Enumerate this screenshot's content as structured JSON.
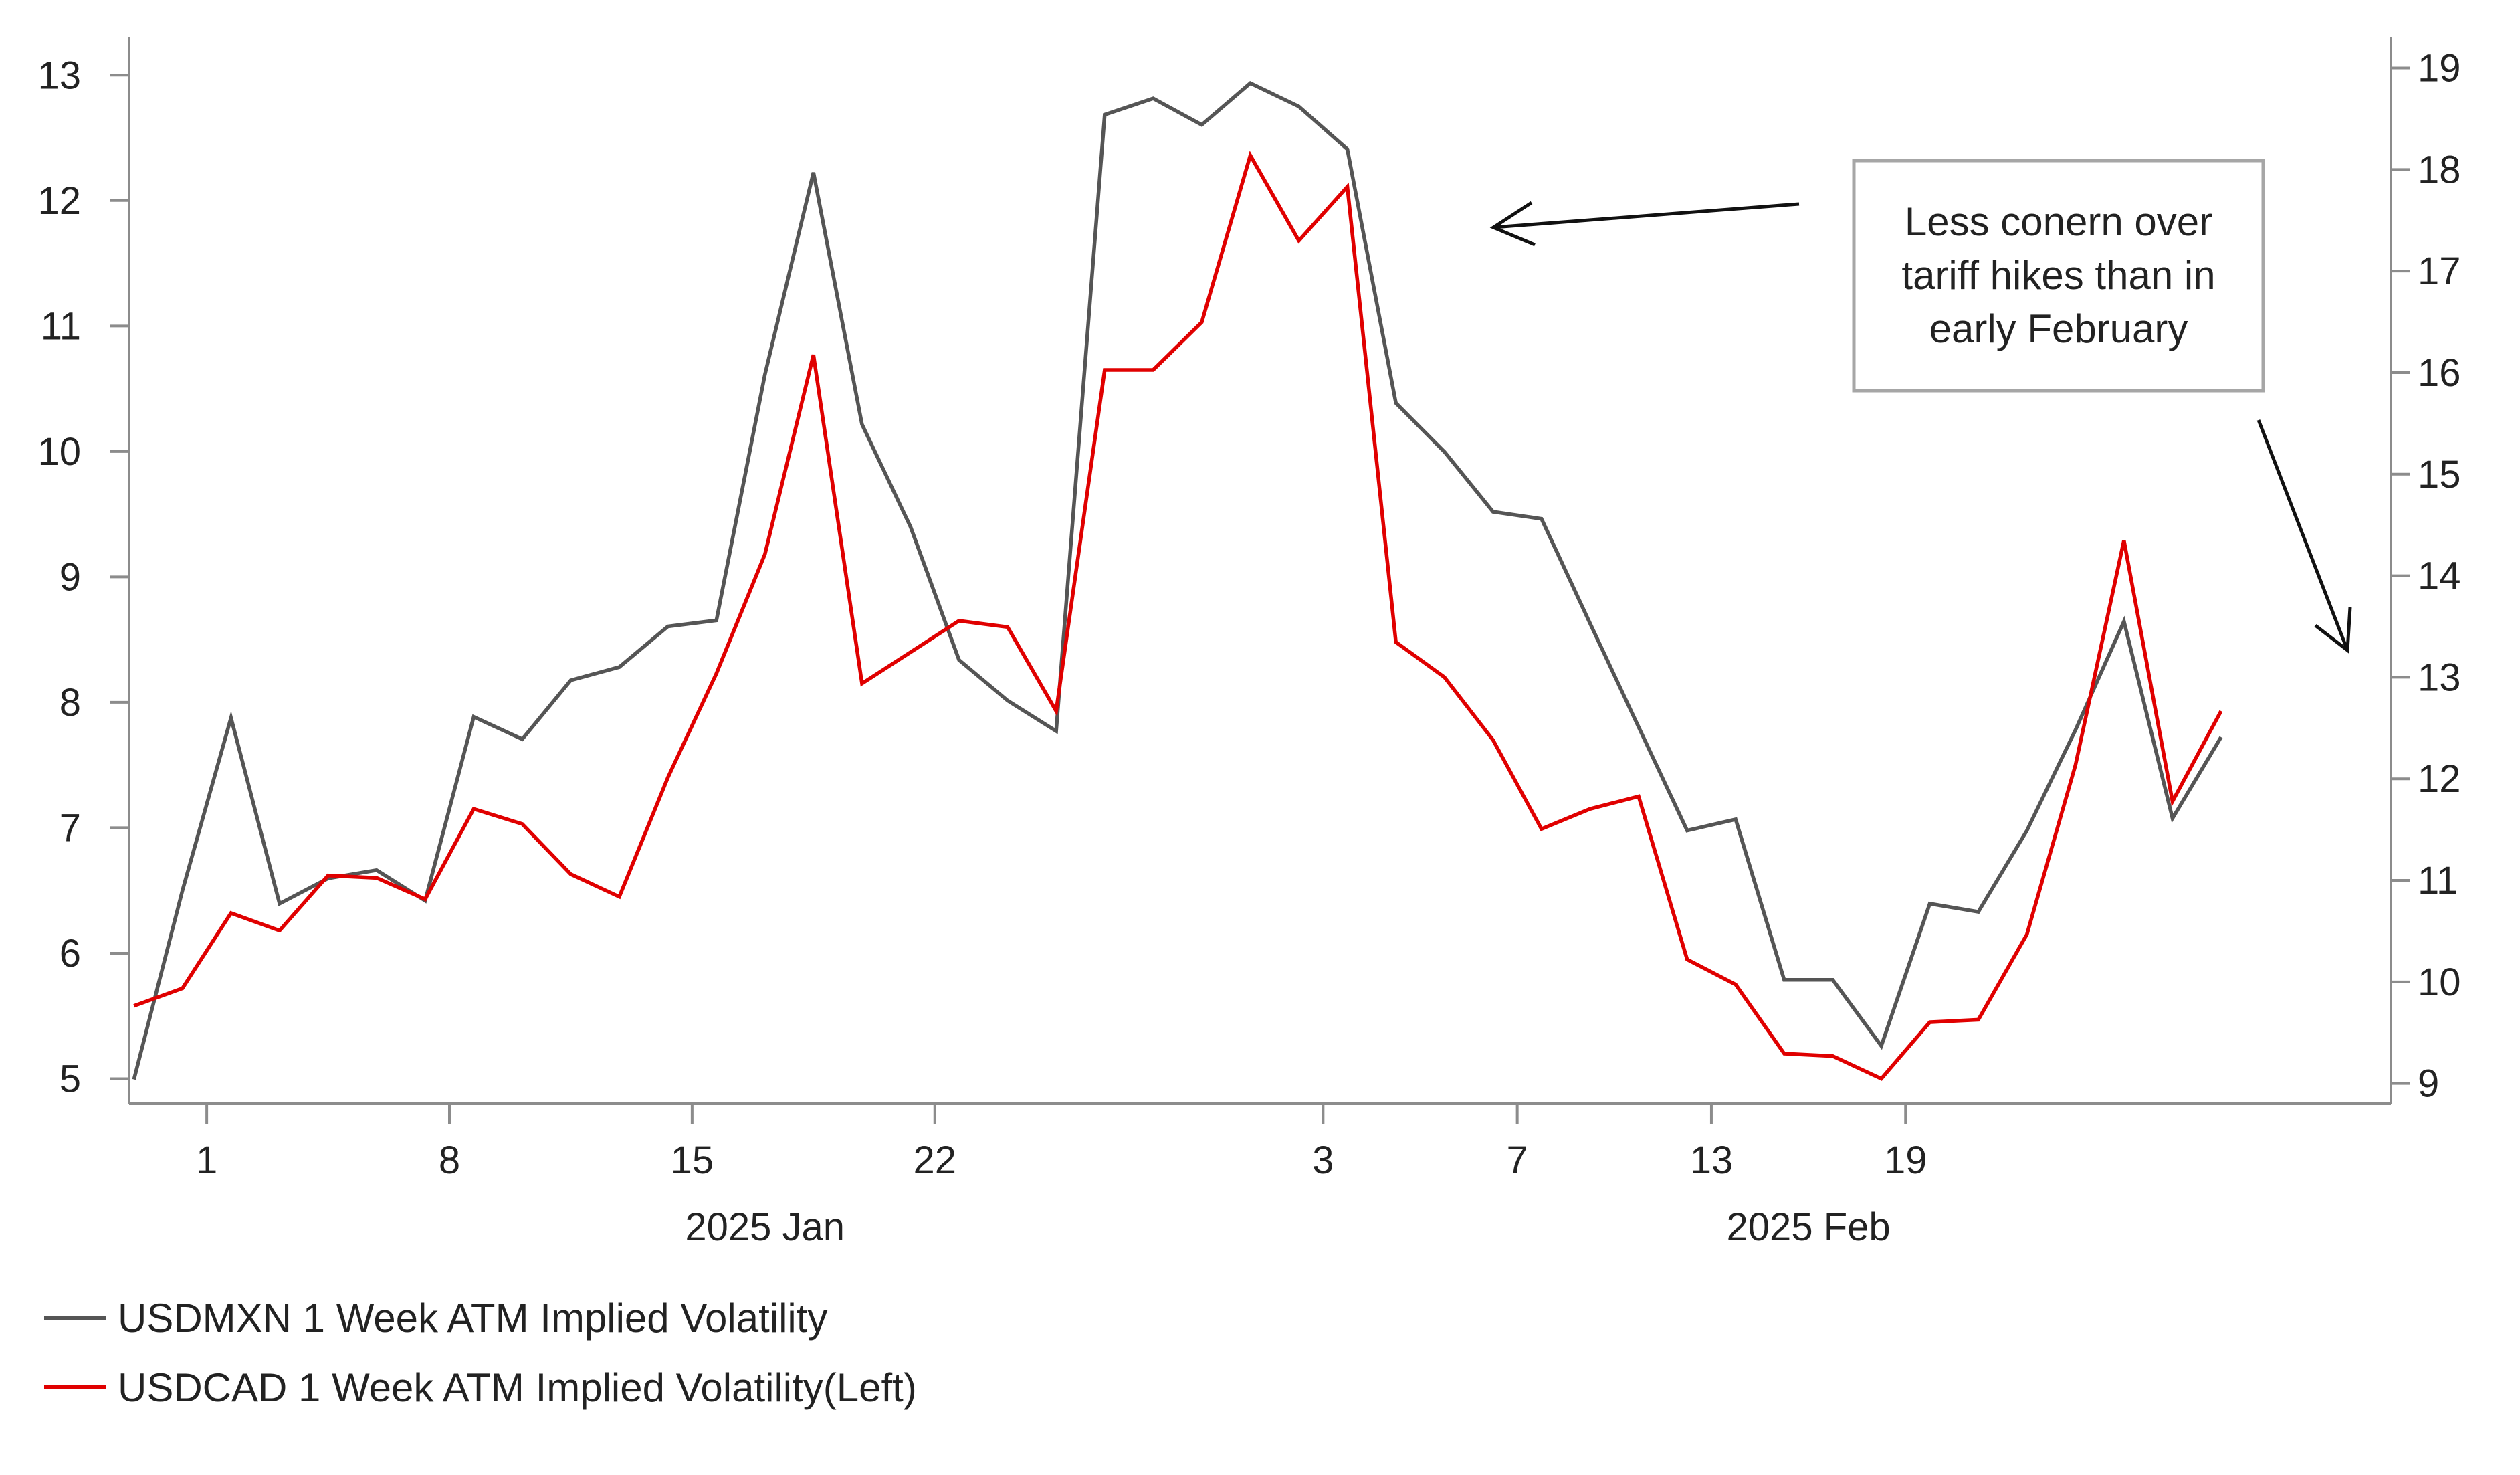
{
  "chart_data": {
    "type": "line",
    "title": "",
    "x_index_range": [
      -1.6,
      45
    ],
    "x_tick_labels": [
      {
        "index": 0,
        "label": "1"
      },
      {
        "index": 5,
        "label": "8"
      },
      {
        "index": 10,
        "label": "15"
      },
      {
        "index": 15,
        "label": "22"
      },
      {
        "index": 23,
        "label": "3"
      },
      {
        "index": 27,
        "label": "7"
      },
      {
        "index": 31,
        "label": "13"
      },
      {
        "index": 35,
        "label": "19"
      }
    ],
    "x_group_labels": [
      {
        "index": 11.5,
        "label": "2025 Jan"
      },
      {
        "index": 33,
        "label": "2025 Feb"
      }
    ],
    "y_left": {
      "ylim": [
        4.8,
        13.3
      ],
      "ticks": [
        5,
        6,
        7,
        8,
        9,
        10,
        11,
        12,
        13
      ]
    },
    "y_right": {
      "ylim": [
        8.8,
        19.3
      ],
      "ticks": [
        9,
        10,
        11,
        12,
        13,
        14,
        15,
        16,
        17,
        18,
        19
      ]
    },
    "series": [
      {
        "name": "USDMXN 1 Week ATM Implied Volatility",
        "axis": "right",
        "color": "#555555",
        "start_index": -1.5,
        "values": [
          9.04,
          10.9,
          12.6,
          10.77,
          11.02,
          11.1,
          10.8,
          12.61,
          12.39,
          12.97,
          13.1,
          13.5,
          13.56,
          15.98,
          17.97,
          15.49,
          14.48,
          13.17,
          12.77,
          12.47,
          18.54,
          18.7,
          18.44,
          18.85,
          18.62,
          18.2,
          15.7,
          15.22,
          14.63,
          14.56,
          13.53,
          12.51,
          11.49,
          11.6,
          10.02,
          10.02,
          9.37,
          10.77,
          10.69,
          11.49,
          12.48,
          13.55,
          11.61,
          12.41
        ]
      },
      {
        "name": "USDCAD 1 Week ATM Implied Volatility(Left)",
        "axis": "left",
        "color": "#e00000",
        "start_index": -1.5,
        "values": [
          5.58,
          5.72,
          6.32,
          6.18,
          6.62,
          6.6,
          6.43,
          7.15,
          7.03,
          6.63,
          6.45,
          7.4,
          8.23,
          9.18,
          10.77,
          8.15,
          8.4,
          8.65,
          8.6,
          7.93,
          10.65,
          10.65,
          11.03,
          12.36,
          11.68,
          12.11,
          8.48,
          8.2,
          7.7,
          6.99,
          7.15,
          7.25,
          5.95,
          5.75,
          5.2,
          5.18,
          5.0,
          5.45,
          5.47,
          6.15,
          7.5,
          9.29,
          7.21,
          7.93
        ]
      }
    ],
    "annotations": [
      {
        "text_lines": [
          "Less conern over",
          "tariff hikes than in",
          "early February"
        ]
      }
    ],
    "legend": {
      "position": "bottom-left"
    }
  }
}
